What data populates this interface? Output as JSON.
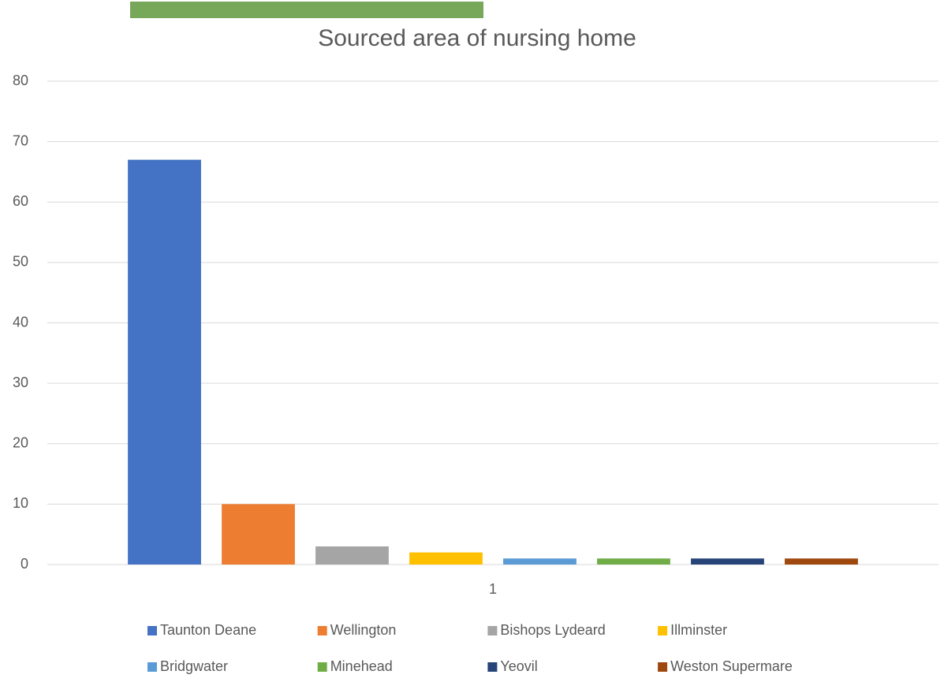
{
  "chart_data": {
    "type": "bar",
    "title": "Sourced area of nursing home",
    "categories": [
      "1"
    ],
    "series": [
      {
        "name": "Taunton Deane",
        "color": "#4472c4",
        "values": [
          67
        ]
      },
      {
        "name": "Wellington",
        "color": "#ed7d31",
        "values": [
          10
        ]
      },
      {
        "name": "Bishops Lydeard",
        "color": "#a5a5a5",
        "values": [
          3
        ]
      },
      {
        "name": "Illminster",
        "color": "#ffc000",
        "values": [
          2
        ]
      },
      {
        "name": "Bridgwater",
        "color": "#5b9bd5",
        "values": [
          1
        ]
      },
      {
        "name": "Minehead",
        "color": "#70ad47",
        "values": [
          1
        ]
      },
      {
        "name": "Yeovil",
        "color": "#264478",
        "values": [
          1
        ]
      },
      {
        "name": "Weston Supermare",
        "color": "#9e480e",
        "values": [
          1
        ]
      }
    ],
    "ylim": [
      0,
      80
    ],
    "yticks": [
      0,
      10,
      20,
      30,
      40,
      50,
      60,
      70,
      80
    ],
    "grid": true,
    "legend": "bottom"
  }
}
